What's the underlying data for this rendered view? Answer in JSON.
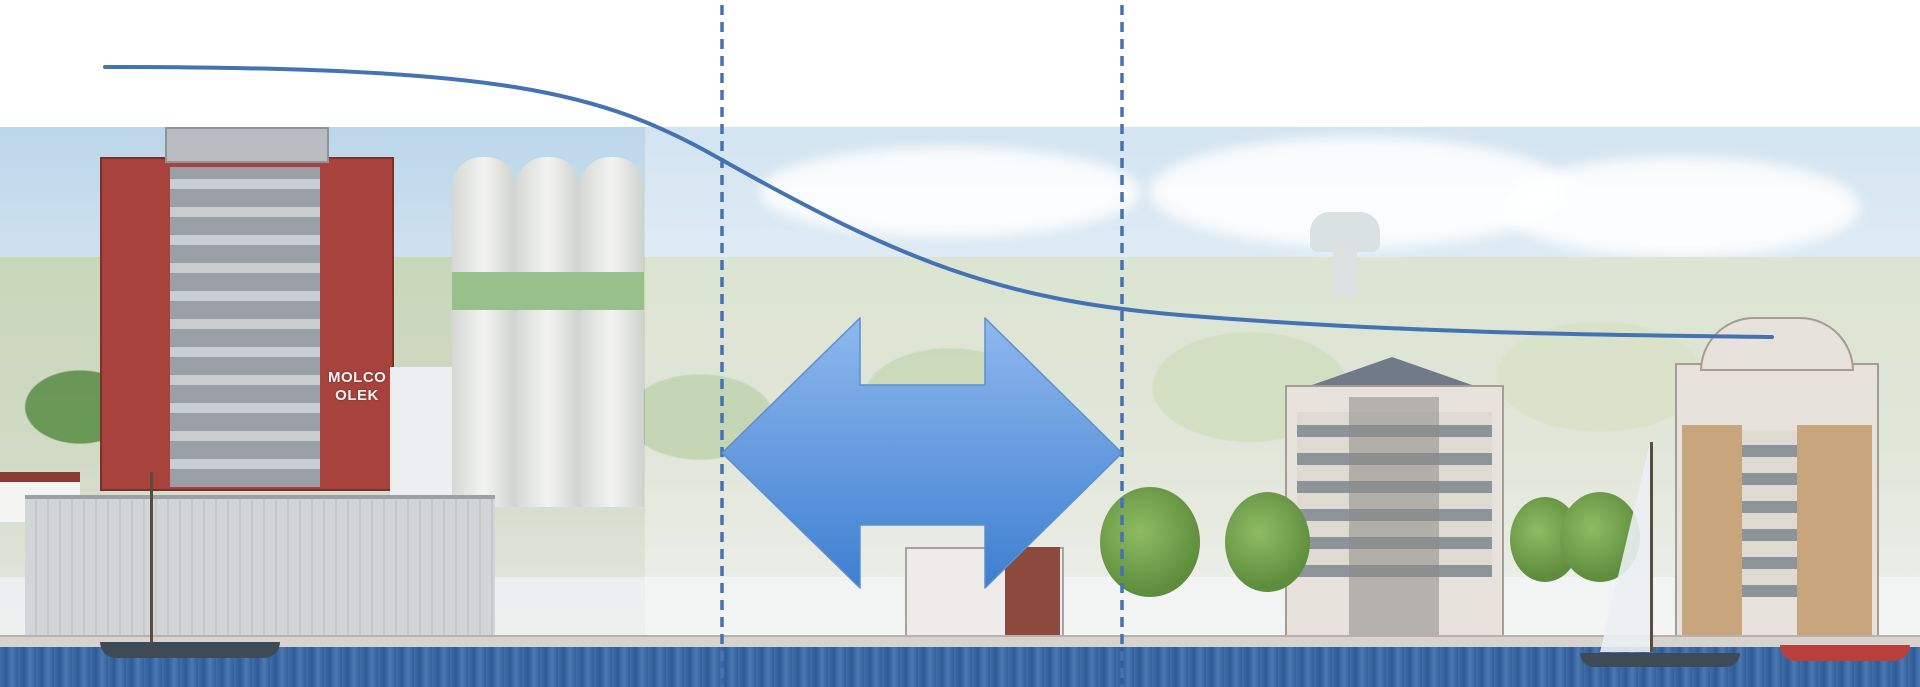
{
  "scene": {
    "sign_lines": [
      "MOLCO",
      "OLEK"
    ]
  },
  "overlay": {
    "curve_color": "#4472b3",
    "divider_color": "#4472b3",
    "arrow_top_color": "#8fb8ee",
    "arrow_bottom_color": "#3e7fd0",
    "arrow_edge_color": "#5d8fd0"
  },
  "icons": {
    "double_arrow": "left-right-arrow-icon"
  }
}
